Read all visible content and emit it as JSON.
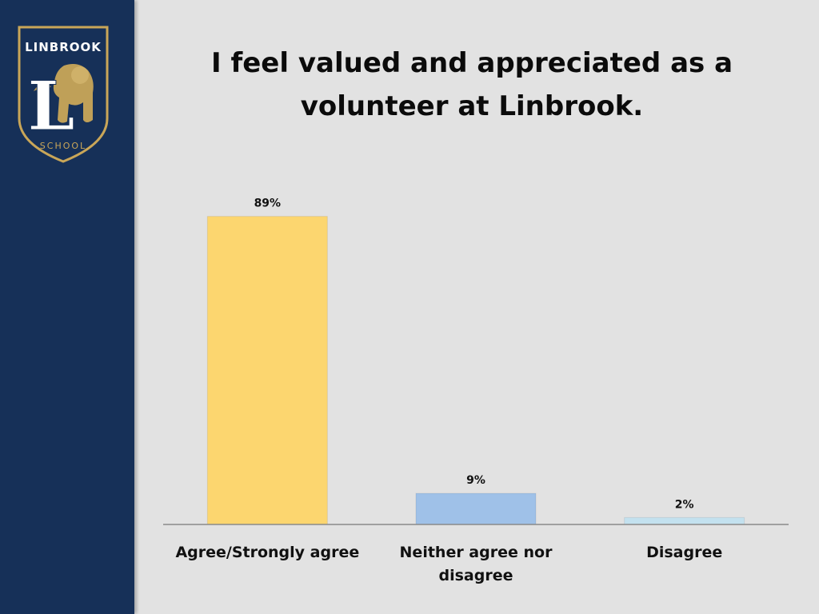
{
  "sidebar": {
    "color": "#163058",
    "logo": {
      "icon": "linbrook-crest-icon",
      "top_text": "LINBROOK",
      "letter": "L",
      "bottom_text": "SCHOOL",
      "gold": "#c9a658"
    }
  },
  "chart_data": {
    "type": "bar",
    "title": "I feel valued and appreciated as a volunteer at Linbrook.",
    "categories": [
      [
        "Agree/Strongly agree"
      ],
      [
        "Neither agree nor",
        "disagree"
      ],
      [
        "Disagree"
      ]
    ],
    "values": [
      89,
      9,
      2
    ],
    "value_labels": [
      "89%",
      "9%",
      "2%"
    ],
    "colors": [
      "#fcd66f",
      "#9fc1e8",
      "#c3e1ef"
    ],
    "ylim": [
      0,
      100
    ],
    "grid": false,
    "legend": "none"
  }
}
